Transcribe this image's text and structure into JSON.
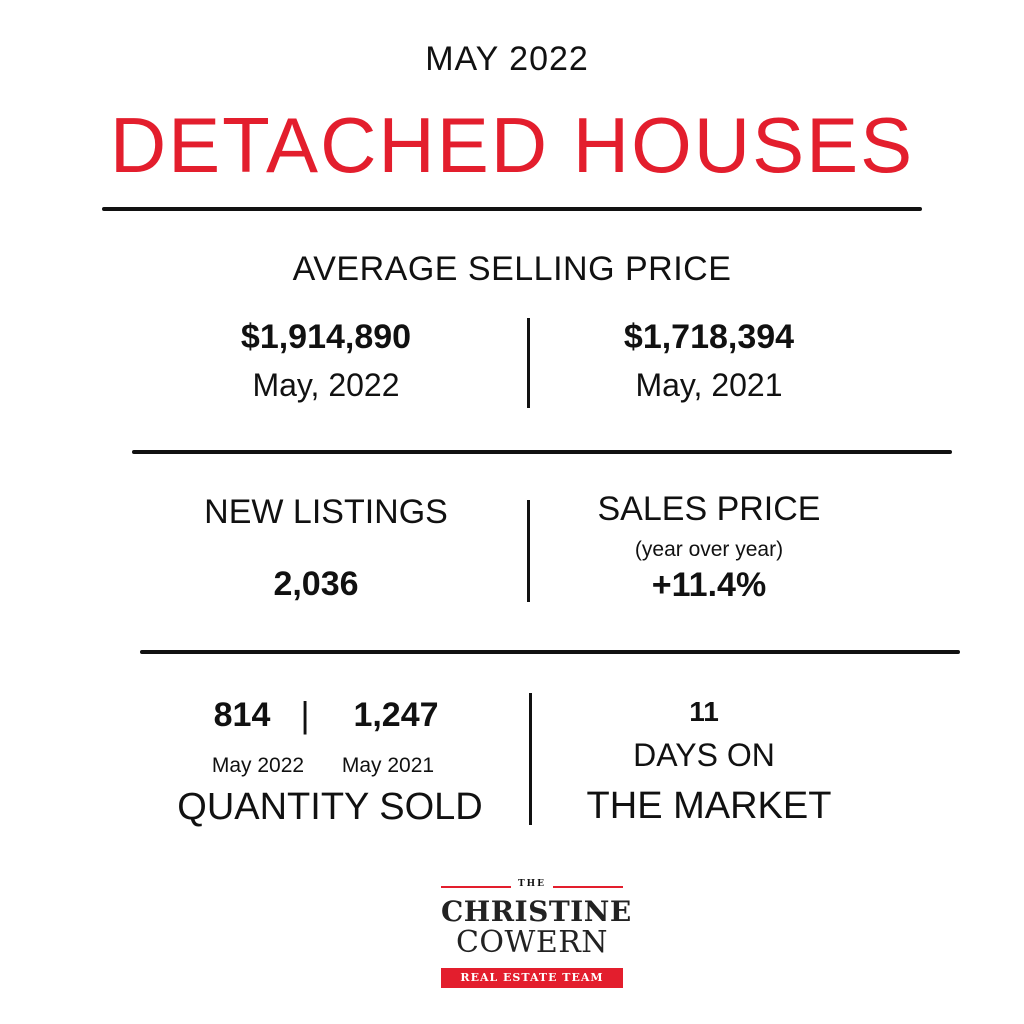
{
  "header": {
    "month": "MAY 2022",
    "title": "DETACHED HOUSES",
    "title_color": "#e31e2d"
  },
  "average_selling_price": {
    "title": "AVERAGE SELLING PRICE",
    "current": {
      "value": "$1,914,890",
      "label": "May, 2022"
    },
    "previous": {
      "value": "$1,718,394",
      "label": "May, 2021"
    }
  },
  "new_listings": {
    "title": "NEW LISTINGS",
    "value": "2,036"
  },
  "sales_price": {
    "title": "SALES PRICE",
    "subtitle": "(year over year)",
    "value": "+11.4%"
  },
  "quantity_sold": {
    "current_value": "814",
    "separator": "|",
    "previous_value": "1,247",
    "current_label": "May 2022",
    "previous_label": "May 2021",
    "title": "QUANTITY SOLD"
  },
  "days_on_market": {
    "value": "11",
    "line1": "DAYS ON",
    "line2": "THE MARKET"
  },
  "logo": {
    "the": "THE",
    "line1": "CHRISTINE",
    "line2": "COWERN",
    "band": "REAL ESTATE TEAM",
    "accent_color": "#e31e2d"
  }
}
